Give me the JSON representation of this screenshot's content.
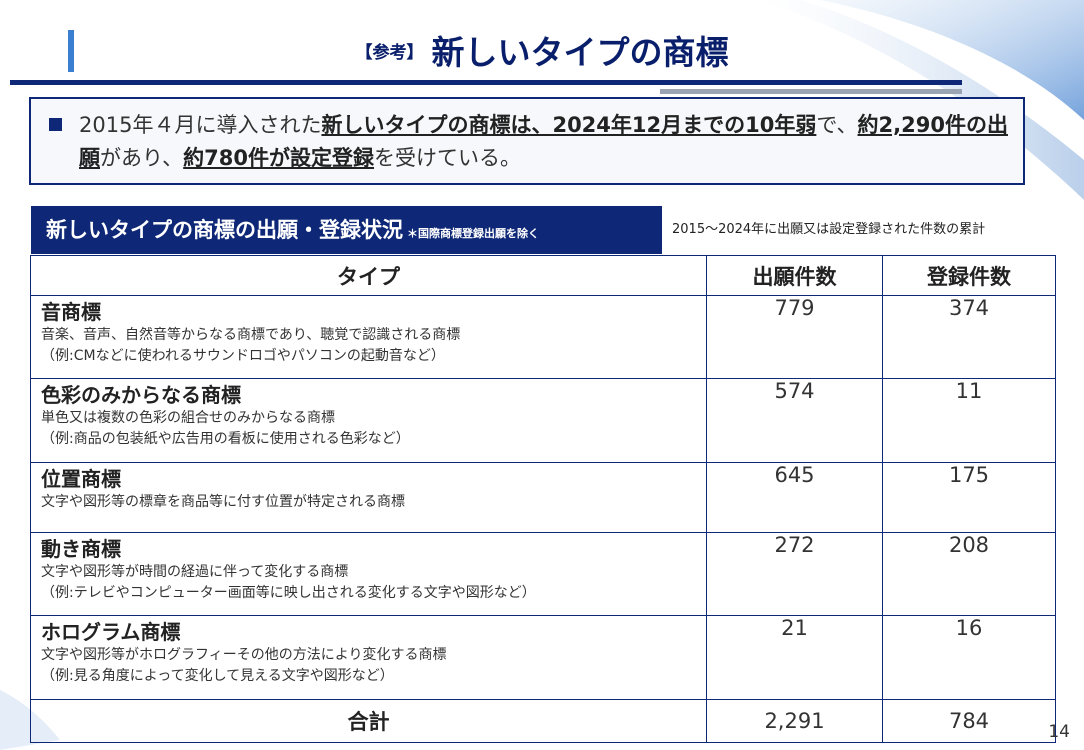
{
  "header": {
    "prefix": "【参考】",
    "title": "新しいタイプの商標"
  },
  "summary": {
    "parts": [
      {
        "text": "2015年４月に導入された",
        "em": false
      },
      {
        "text": "新しいタイプの商標は、2024年12月までの10年弱",
        "em": true
      },
      {
        "text": "で、",
        "em": false
      },
      {
        "text": "約2,290件の出願",
        "em": true
      },
      {
        "text": "があり、",
        "em": false
      },
      {
        "text": "約780件が設定登録",
        "em": true
      },
      {
        "text": "を受けている。",
        "em": false
      }
    ]
  },
  "section": {
    "title": "新しいタイプの商標の出願・登録状況",
    "note": "＊国際商標登録出願を除く",
    "side_note": "2015～2024年に出願又は設定登録された件数の累計"
  },
  "table": {
    "headers": [
      "タイプ",
      "出願件数",
      "登録件数"
    ],
    "rows": [
      {
        "name": "音商標",
        "desc": "音楽、音声、自然音等からなる商標であり、聴覚で認識される商標",
        "example": "（例:CMなどに使われるサウンドロゴやパソコンの起動音など）",
        "applications": "779",
        "registrations": "374"
      },
      {
        "name": "色彩のみからなる商標",
        "desc": "単色又は複数の色彩の組合せのみからなる商標",
        "example": "（例:商品の包装紙や広告用の看板に使用される色彩など）",
        "applications": "574",
        "registrations": "11"
      },
      {
        "name": "位置商標",
        "desc": "文字や図形等の標章を商品等に付す位置が特定される商標",
        "example": "",
        "applications": "645",
        "registrations": "175"
      },
      {
        "name": "動き商標",
        "desc": "文字や図形等が時間の経過に伴って変化する商標",
        "example": "（例:テレビやコンピューター画面等に映し出される変化する文字や図形など）",
        "applications": "272",
        "registrations": "208"
      },
      {
        "name": "ホログラム商標",
        "desc": "文字や図形等がホログラフィーその他の方法により変化する商標",
        "example": "（例:見る角度によって変化して見える文字や図形など）",
        "applications": "21",
        "registrations": "16"
      }
    ],
    "total": {
      "label": "合計",
      "applications": "2,291",
      "registrations": "784"
    }
  },
  "page_number": "14",
  "colors": {
    "navy": "#0e2877",
    "accent_blue": "#3b7fd0",
    "gray_line": "#9aa4b3"
  }
}
